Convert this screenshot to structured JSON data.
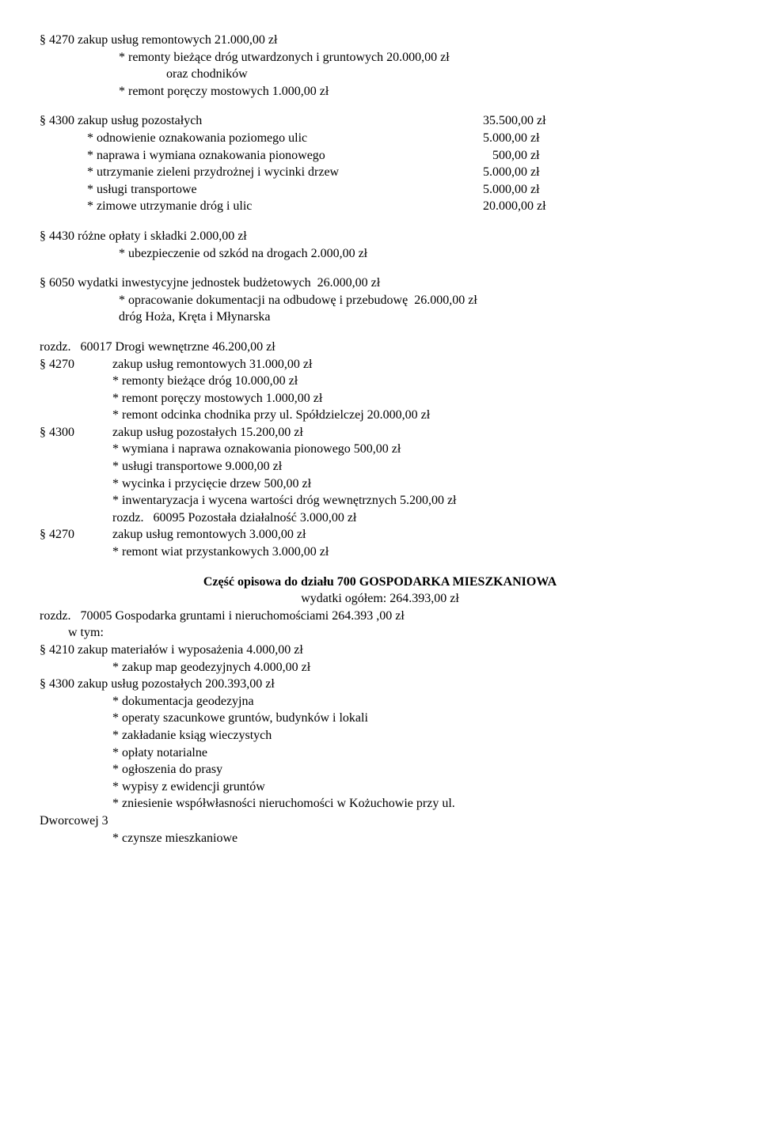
{
  "l1": "§ 4270 zakup usług remontowych 21.000,00 zł",
  "l2": "* remonty bieżące dróg utwardzonych i gruntowych 20.000,00 zł",
  "l3": "oraz chodników",
  "l4": "* remont poręczy mostowych 1.000,00 zł",
  "t1l": "§ 4300 zakup usług pozostałych",
  "t1r": "35.500,00 zł",
  "t2l": "               * odnowienie oznakowania poziomego ulic",
  "t2r": "5.000,00 zł",
  "t3l": "               * naprawa i wymiana oznakowania pionowego",
  "t3r": "   500,00 zł",
  "t4l": "               * utrzymanie zieleni przydrożnej i wycinki drzew",
  "t4r": "5.000,00 zł",
  "t5l": "               * usługi transportowe",
  "t5r": "5.000,00 zł",
  "t6l": "               * zimowe utrzymanie dróg i ulic",
  "t6r": "20.000,00 zł",
  "l5": "§ 4430 różne opłaty i składki 2.000,00 zł",
  "l6": "* ubezpieczenie od szkód na drogach 2.000,00 zł",
  "l7": "§ 6050 wydatki inwestycyjne jednostek budżetowych  26.000,00 zł",
  "l8": "* opracowanie dokumentacji na odbudowę i przebudowę  26.000,00 zł",
  "l9": "dróg Hoża, Kręta i Młynarska",
  "r1": "rozdz.   60017 Drogi wewnętrzne 46.200,00 zł",
  "r2": "§ 4270            zakup usług remontowych 31.000,00 zł",
  "r3": "                       * remonty bieżące dróg 10.000,00 zł",
  "r4": "                       * remont poręczy mostowych 1.000,00 zł",
  "r5": "                       * remont odcinka chodnika przy ul. Spółdzielczej 20.000,00 zł",
  "r6": "§ 4300            zakup usług pozostałych 15.200,00 zł",
  "r7": "                       * wymiana i naprawa oznakowania pionowego 500,00 zł",
  "r8": "                       * usługi transportowe 9.000,00 zł",
  "r9": "                       * wycinka i przycięcie drzew 500,00 zł",
  "r10": "                       * inwentaryzacja i wycena wartości dróg wewnętrznych 5.200,00 zł",
  "r11": "                       rozdz.   60095 Pozostała działalność 3.000,00 zł",
  "r12": "§ 4270            zakup usług remontowych 3.000,00 zł",
  "r13": "                       * remont wiat przystankowych 3.000,00 zł",
  "h1": "Część opisowa do działu 700 GOSPODARKA MIESZKANIOWA",
  "h2": "wydatki ogółem: 264.393,00 zł",
  "g1": "rozdz.   70005 Gospodarka gruntami i nieruchomościami 264.393 ,00 zł",
  "g2": "         w tym:",
  "g3": "§ 4210 zakup materiałów i wyposażenia 4.000,00 zł",
  "g4": "                       * zakup map geodezyjnych 4.000,00 zł",
  "g5": "§ 4300 zakup usług pozostałych 200.393,00 zł",
  "g6": "                       * dokumentacja geodezyjna",
  "g7": "                       * operaty szacunkowe gruntów, budynków i lokali",
  "g8": "                       * zakładanie ksiąg wieczystych",
  "g9": "                       * opłaty notarialne",
  "g10": "                       * ogłoszenia do prasy",
  "g11": "                       * wypisy z ewidencji gruntów",
  "g12": "                       * zniesienie współwłasności nieruchomości w Kożuchowie przy ul.",
  "g13": "Dworcowej 3",
  "g14": "                       * czynsze mieszkaniowe"
}
